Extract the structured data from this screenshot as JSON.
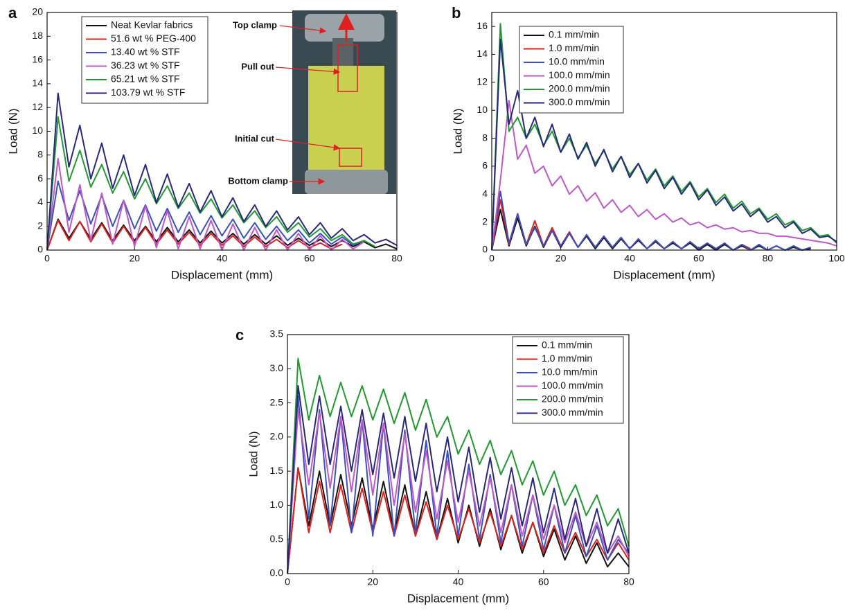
{
  "chart_data": [
    {
      "type": "line",
      "panel_label": "a",
      "x_label": "Displacement (mm)",
      "y_label": "Load (N)",
      "x": [
        0,
        2.5,
        5,
        7.5,
        10,
        12.5,
        15,
        17.5,
        20,
        22.5,
        25,
        27.5,
        30,
        32.5,
        35,
        37.5,
        40,
        42.5,
        45,
        47.5,
        50,
        52.5,
        55,
        57.5,
        60,
        62.5,
        65,
        67.5,
        70,
        72.5,
        75,
        77.5,
        80
      ],
      "xlim": [
        0,
        80
      ],
      "ylim": [
        0,
        20
      ],
      "xticks": [
        0,
        20,
        40,
        60,
        80
      ],
      "yticks": [
        0,
        2,
        4,
        6,
        8,
        10,
        12,
        14,
        16,
        18,
        20
      ],
      "legend": "upper-left",
      "annotations": [
        "Top clamp",
        "Pull out",
        "Initial cut",
        "Bottom clamp"
      ],
      "series": [
        {
          "name": "Neat Kevlar fabrics",
          "color": "#111111",
          "values": [
            0,
            2.6,
            1.0,
            2.4,
            0.9,
            2.3,
            0.8,
            2.1,
            0.8,
            2.0,
            0.7,
            1.9,
            0.7,
            1.7,
            0.6,
            1.6,
            0.6,
            1.4,
            0.5,
            1.3,
            0.5,
            1.2,
            0.4,
            1.0,
            0.4,
            0.9,
            0.3,
            0.8,
            0.3,
            0.7,
            0.2,
            0.5,
            0.1
          ]
        },
        {
          "name": "51.6 wt % PEG-400",
          "color": "#e0201a",
          "values": [
            0,
            2.5,
            0.8,
            2.4,
            0.7,
            2.2,
            0.6,
            2.0,
            0.6,
            1.9,
            0.5,
            1.7,
            0.5,
            1.5,
            0.4,
            1.4,
            0.4,
            1.2,
            0.3,
            1.1,
            0.3,
            0.9,
            0.2,
            0.8,
            0.2,
            0.6,
            0.1,
            0.5,
            null,
            null,
            null,
            null,
            null
          ]
        },
        {
          "name": "13.40 wt % STF",
          "color": "#3a4fc0",
          "values": [
            0,
            5.8,
            2.5,
            5.0,
            2.2,
            4.6,
            2.0,
            4.2,
            1.8,
            3.8,
            1.6,
            3.5,
            1.5,
            3.2,
            1.3,
            2.9,
            1.2,
            2.6,
            1.0,
            2.3,
            0.9,
            2.0,
            0.8,
            1.7,
            0.6,
            1.4,
            0.5,
            1.1,
            0.4,
            0.8,
            null,
            null,
            null
          ]
        },
        {
          "name": "36.23 wt % STF",
          "color": "#c056c8",
          "values": [
            0,
            7.7,
            1.5,
            5.5,
            0.8,
            4.8,
            0.5,
            4.2,
            0.3,
            3.7,
            0.2,
            3.3,
            0.1,
            2.8,
            0.1,
            2.5,
            0,
            2.2,
            0,
            1.9,
            0,
            1.7,
            0,
            1.4,
            0,
            1.2,
            0,
            0.9,
            0.1,
            0.7,
            null,
            null,
            null
          ]
        },
        {
          "name": "65.21 wt % STF",
          "color": "#1e9a2e",
          "values": [
            0,
            11.2,
            5.8,
            8.4,
            5.3,
            7.2,
            4.8,
            6.6,
            4.3,
            6.0,
            3.9,
            5.4,
            3.5,
            4.8,
            3.1,
            4.3,
            2.7,
            3.8,
            2.3,
            3.3,
            1.9,
            2.8,
            1.5,
            2.3,
            1.1,
            1.8,
            0.8,
            1.3,
            0.5,
            0.8,
            0.3,
            null,
            null
          ]
        },
        {
          "name": "103.79 wt % STF",
          "color": "#27277e",
          "values": [
            0,
            13.2,
            7.0,
            10.5,
            6.0,
            9.0,
            5.2,
            8.0,
            4.6,
            7.2,
            4.0,
            6.4,
            3.6,
            5.6,
            3.2,
            5.0,
            2.8,
            4.4,
            2.4,
            3.8,
            2.0,
            3.3,
            1.7,
            2.8,
            1.3,
            2.3,
            1.0,
            1.8,
            0.8,
            1.3,
            0.6,
            0.9,
            0.4
          ]
        }
      ]
    },
    {
      "type": "line",
      "panel_label": "b",
      "x_label": "Displacement (mm)",
      "y_label": "Load (N)",
      "x": [
        0,
        2.5,
        5,
        7.5,
        10,
        12.5,
        15,
        17.5,
        20,
        22.5,
        25,
        27.5,
        30,
        32.5,
        35,
        37.5,
        40,
        42.5,
        45,
        47.5,
        50,
        52.5,
        55,
        57.5,
        60,
        62.5,
        65,
        67.5,
        70,
        72.5,
        75,
        77.5,
        80,
        82.5,
        85,
        87.5,
        90,
        92.5,
        95,
        97.5,
        100
      ],
      "xlim": [
        0,
        100
      ],
      "ylim": [
        0,
        17
      ],
      "xticks": [
        0,
        20,
        40,
        60,
        80,
        100
      ],
      "yticks": [
        0,
        2,
        4,
        6,
        8,
        10,
        12,
        14,
        16
      ],
      "legend": "upper-left",
      "series": [
        {
          "name": "0.1 mm/min",
          "color": "#111111",
          "values": [
            0,
            2.9,
            0.3,
            2.3,
            0.3,
            1.7,
            0.2,
            1.4,
            0.2,
            1.2,
            0.2,
            1.0,
            0.1,
            0.9,
            0.1,
            0.8,
            0.1,
            0.7,
            0.1,
            0.6,
            0.1,
            0.5,
            0.1,
            0.5,
            0,
            0.4,
            0,
            0.4,
            0,
            0.3,
            0,
            0.3,
            0,
            0.3,
            0,
            0.2,
            0,
            0.1,
            null,
            null,
            null
          ]
        },
        {
          "name": "1.0 mm/min",
          "color": "#e0201a",
          "values": [
            0,
            3.6,
            0.4,
            2.6,
            0.4,
            2.1,
            0.3,
            1.6,
            0.3,
            1.3,
            0.2,
            1.1,
            0.2,
            1.0,
            0.2,
            0.9,
            0.1,
            0.8,
            0.1,
            0.7,
            0.1,
            0.6,
            0.1,
            0.6,
            0.1,
            0.5,
            0.1,
            0.5,
            0,
            0.4,
            0.1,
            null,
            null,
            null,
            null,
            null,
            null,
            null,
            null,
            null,
            null
          ]
        },
        {
          "name": "10.0 mm/min",
          "color": "#3a4fc0",
          "values": [
            0,
            4.2,
            0.5,
            2.6,
            0.4,
            1.6,
            0.3,
            1.4,
            0.3,
            1.2,
            0.2,
            1.1,
            0.2,
            1.0,
            0.2,
            0.9,
            0.1,
            0.8,
            0.1,
            0.7,
            0.1,
            0.6,
            0.1,
            0.6,
            0.1,
            0.5,
            0.1,
            0.5,
            0,
            0.4,
            0,
            0.4,
            0,
            0.3,
            0,
            0.3,
            0,
            0.2,
            null,
            null,
            null
          ]
        },
        {
          "name": "100.0 mm/min",
          "color": "#c056c8",
          "values": [
            0,
            5.0,
            10.7,
            6.5,
            7.5,
            5.5,
            6.0,
            4.6,
            5.3,
            4.0,
            4.6,
            3.5,
            4.1,
            3.0,
            3.6,
            2.7,
            3.2,
            2.4,
            2.9,
            2.2,
            2.6,
            2.0,
            2.3,
            1.8,
            2.0,
            1.6,
            1.8,
            1.5,
            1.6,
            1.3,
            1.4,
            1.2,
            1.2,
            1.0,
            1.0,
            0.9,
            0.8,
            0.7,
            0.6,
            0.5,
            0.3
          ]
        },
        {
          "name": "200.0 mm/min",
          "color": "#1e9a2e",
          "values": [
            0,
            16.2,
            8.5,
            9.5,
            8.0,
            9.0,
            7.5,
            8.5,
            7.0,
            8.0,
            6.6,
            7.5,
            6.2,
            7.1,
            5.8,
            6.7,
            5.4,
            6.2,
            5.0,
            5.8,
            4.6,
            5.3,
            4.2,
            4.9,
            3.8,
            4.4,
            3.4,
            4.0,
            3.0,
            3.5,
            2.6,
            3.0,
            2.2,
            2.6,
            1.8,
            2.1,
            1.4,
            1.6,
            1.0,
            1.1,
            0.5
          ]
        },
        {
          "name": "300.0 mm/min",
          "color": "#27277e",
          "values": [
            0,
            15.1,
            9.0,
            11.4,
            8.0,
            9.5,
            7.4,
            9.0,
            7.0,
            8.3,
            6.5,
            7.7,
            6.0,
            7.2,
            5.6,
            6.7,
            5.2,
            6.2,
            4.8,
            5.7,
            4.4,
            5.2,
            4.0,
            4.8,
            3.6,
            4.3,
            3.2,
            3.8,
            2.8,
            3.3,
            2.4,
            2.9,
            2.0,
            2.4,
            1.6,
            2.0,
            1.2,
            1.5,
            0.9,
            1.0,
            0.6
          ]
        }
      ]
    },
    {
      "type": "line",
      "panel_label": "c",
      "x_label": "Displacement (mm)",
      "y_label": "Load (N)",
      "x": [
        0,
        2.5,
        5,
        7.5,
        10,
        12.5,
        15,
        17.5,
        20,
        22.5,
        25,
        27.5,
        30,
        32.5,
        35,
        37.5,
        40,
        42.5,
        45,
        47.5,
        50,
        52.5,
        55,
        57.5,
        60,
        62.5,
        65,
        67.5,
        70,
        72.5,
        75,
        77.5,
        80
      ],
      "xlim": [
        0,
        80
      ],
      "ylim": [
        0,
        3.5
      ],
      "xticks": [
        0,
        20,
        40,
        60,
        80
      ],
      "yticks": [
        {
          "value": 0,
          "label": "0.0"
        },
        0.5,
        {
          "value": 1,
          "label": "1.0"
        },
        1.5,
        {
          "value": 2,
          "label": "2.0"
        },
        2.5,
        {
          "value": 3,
          "label": "3.0"
        },
        3.5
      ],
      "legend": "upper-right",
      "series": [
        {
          "name": "0.1 mm/min",
          "color": "#111111",
          "values": [
            0,
            1.55,
            0.7,
            1.5,
            0.7,
            1.45,
            0.7,
            1.4,
            0.65,
            1.35,
            0.6,
            1.3,
            0.55,
            1.2,
            0.5,
            1.1,
            0.45,
            1.0,
            0.4,
            0.95,
            0.35,
            0.85,
            0.3,
            0.75,
            0.25,
            0.65,
            0.2,
            0.55,
            0.15,
            0.45,
            0.1,
            0.3,
            0.1
          ]
        },
        {
          "name": "1.0 mm/min",
          "color": "#e0201a",
          "values": [
            0,
            1.55,
            0.6,
            1.35,
            0.6,
            1.3,
            0.6,
            1.25,
            0.6,
            1.2,
            0.55,
            1.15,
            0.55,
            1.05,
            0.5,
            1.0,
            0.5,
            0.95,
            0.45,
            0.9,
            0.4,
            0.85,
            0.35,
            0.75,
            0.3,
            0.7,
            0.3,
            0.6,
            0.25,
            0.5,
            0.2,
            0.45,
            0.2
          ]
        },
        {
          "name": "10.0 mm/min",
          "color": "#3a4fc0",
          "values": [
            0,
            2.6,
            0.8,
            2.4,
            0.7,
            2.3,
            0.6,
            2.25,
            0.55,
            2.2,
            0.55,
            2.1,
            0.6,
            1.95,
            0.55,
            1.8,
            0.55,
            1.6,
            0.5,
            1.45,
            0.45,
            1.3,
            0.4,
            1.15,
            0.35,
            1.0,
            0.3,
            0.85,
            0.25,
            0.7,
            0.2,
            0.5,
            0.3
          ]
        },
        {
          "name": "100.0 mm/min",
          "color": "#c056c8",
          "values": [
            0,
            2.4,
            1.3,
            2.35,
            1.25,
            2.3,
            1.2,
            2.25,
            1.15,
            2.2,
            1.0,
            2.05,
            0.9,
            1.8,
            0.8,
            1.65,
            0.75,
            1.5,
            0.7,
            1.4,
            0.6,
            1.3,
            0.55,
            1.15,
            0.5,
            1.0,
            0.45,
            0.9,
            0.4,
            0.75,
            0.3,
            0.55,
            0.25
          ]
        },
        {
          "name": "200.0 mm/min",
          "color": "#1e9a2e",
          "values": [
            0,
            3.15,
            2.25,
            2.9,
            2.3,
            2.8,
            2.3,
            2.75,
            2.25,
            2.7,
            2.2,
            2.65,
            2.1,
            2.55,
            2.0,
            2.3,
            1.75,
            2.1,
            1.6,
            1.95,
            1.45,
            1.8,
            1.3,
            1.65,
            1.15,
            1.5,
            1.0,
            1.3,
            0.85,
            1.15,
            0.7,
            0.95,
            0.4
          ]
        },
        {
          "name": "300.0 mm/min",
          "color": "#27277e",
          "values": [
            0,
            2.75,
            1.6,
            2.6,
            1.6,
            2.45,
            1.5,
            2.4,
            1.45,
            2.35,
            1.4,
            2.3,
            1.35,
            2.2,
            1.2,
            2.0,
            1.05,
            1.85,
            0.9,
            1.7,
            0.8,
            1.55,
            0.7,
            1.4,
            0.6,
            1.25,
            0.5,
            1.1,
            0.4,
            0.95,
            0.3,
            0.8,
            0.3
          ]
        }
      ]
    }
  ]
}
